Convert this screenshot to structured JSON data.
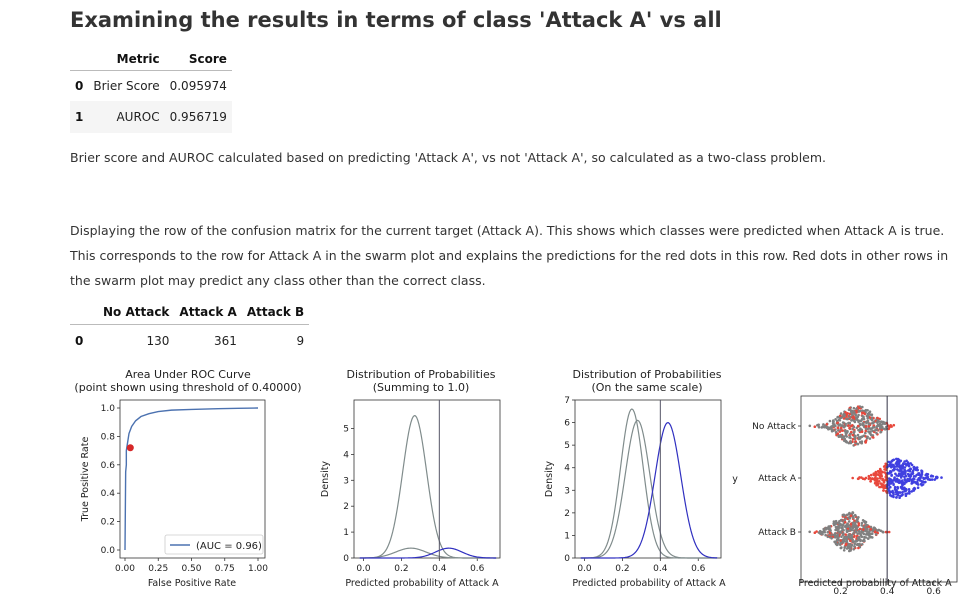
{
  "heading": "Examining the results in terms of class 'Attack A' vs all",
  "metrics_table": {
    "headers": [
      "Metric",
      "Score"
    ],
    "rows": [
      {
        "index": "0",
        "metric": "Brier Score",
        "score": "0.095974"
      },
      {
        "index": "1",
        "metric": "AUROC",
        "score": "0.956719"
      }
    ]
  },
  "paragraph1": "Brier score and AUROC calculated based on predicting 'Attack A', vs not 'Attack A', so calculated as a two-class problem.",
  "paragraph2": {
    "line1": "Displaying the row of the confusion matrix for the current target (Attack A). This shows which classes were predicted when Attack A is true.",
    "line2": "This corresponds to the row for Attack A in the swarm plot and explains the predictions for the red dots in this row. Red dots in other rows in",
    "line3": "the swarm plot may predict any class other than the correct class."
  },
  "confusion_table": {
    "headers": [
      "No Attack",
      "Attack A",
      "Attack B"
    ],
    "rows": [
      {
        "index": "0",
        "values": [
          "130",
          "361",
          "9"
        ]
      }
    ]
  },
  "chart_data": [
    {
      "type": "line",
      "title": "Area Under ROC Curve",
      "subtitle": "(point shown using threshold of 0.40000)",
      "xlabel": "False Positive Rate",
      "ylabel": "True Positive Rate",
      "xlim": [
        0,
        1
      ],
      "ylim": [
        0,
        1
      ],
      "xticks": [
        "0.00",
        "0.25",
        "0.50",
        "0.75",
        "1.00"
      ],
      "yticks": [
        "0.0",
        "0.2",
        "0.4",
        "0.6",
        "0.8",
        "1.0"
      ],
      "legend": "(AUC = 0.96)",
      "legend_position": "lower-right",
      "series": [
        {
          "x": [
            0,
            0.005,
            0.01,
            0.01,
            0.02,
            0.03,
            0.05,
            0.08,
            0.12,
            0.18,
            0.25,
            0.35,
            0.5,
            0.7,
            0.85,
            1.0
          ],
          "y": [
            0,
            0.55,
            0.6,
            0.7,
            0.76,
            0.82,
            0.87,
            0.91,
            0.94,
            0.96,
            0.975,
            0.985,
            0.99,
            0.995,
            0.998,
            1.0
          ]
        }
      ],
      "threshold_point": {
        "x": 0.04,
        "y": 0.72
      },
      "color": "#4c72b0",
      "point_color": "#d62728"
    },
    {
      "type": "area",
      "title": "Distribution of Probabilities",
      "subtitle": "(Summing to 1.0)",
      "xlabel": "Predicted probability of Attack A",
      "ylabel": "Density",
      "xlim": [
        -0.05,
        0.72
      ],
      "ylim": [
        0,
        6.1
      ],
      "xticks": [
        "0.0",
        "0.2",
        "0.4",
        "0.6"
      ],
      "yticks": [
        "0",
        "1",
        "2",
        "3",
        "4",
        "5"
      ],
      "threshold": 0.4,
      "series": [
        {
          "color": "#808c8c",
          "peak": 5.5,
          "mean": 0.27,
          "sd": 0.063
        },
        {
          "color": "#808c8c",
          "peak": 0.38,
          "mean": 0.25,
          "sd": 0.08
        },
        {
          "color": "#3030c0",
          "peak": 0.38,
          "mean": 0.45,
          "sd": 0.07
        }
      ]
    },
    {
      "type": "area",
      "title": "Distribution of Probabilities",
      "subtitle": "(On the same scale)",
      "xlabel": "Predicted probability of Attack A",
      "ylabel": "Density",
      "xlim": [
        -0.05,
        0.72
      ],
      "ylim": [
        0,
        7
      ],
      "xticks": [
        "0.0",
        "0.2",
        "0.4",
        "0.6"
      ],
      "yticks": [
        "0",
        "1",
        "2",
        "3",
        "4",
        "5",
        "6",
        "7"
      ],
      "threshold": 0.4,
      "series": [
        {
          "color": "#808c8c",
          "peak": 6.6,
          "mean": 0.25,
          "sd": 0.06
        },
        {
          "color": "#808c8c",
          "peak": 6.1,
          "mean": 0.28,
          "sd": 0.065
        },
        {
          "color": "#3030c0",
          "peak": 6.0,
          "mean": 0.44,
          "sd": 0.068
        }
      ]
    },
    {
      "type": "scatter",
      "subtype": "swarm",
      "xlabel": "Predicted probability of Attack A",
      "ylabel": "y",
      "xlim": [
        0.03,
        0.7
      ],
      "xticks": [
        "0.2",
        "0.4",
        "0.6"
      ],
      "categories": [
        "No Attack",
        "Attack A",
        "Attack B"
      ],
      "threshold": 0.4,
      "colors": {
        "grey": "#808080",
        "red": "#e8483c",
        "blue": "#4040e0"
      },
      "rows": [
        {
          "label": "No Attack",
          "center": 0.27,
          "spread": 0.07
        },
        {
          "label": "Attack A",
          "center": 0.45,
          "spread": 0.07
        },
        {
          "label": "Attack B",
          "center": 0.24,
          "spread": 0.06
        }
      ]
    }
  ]
}
